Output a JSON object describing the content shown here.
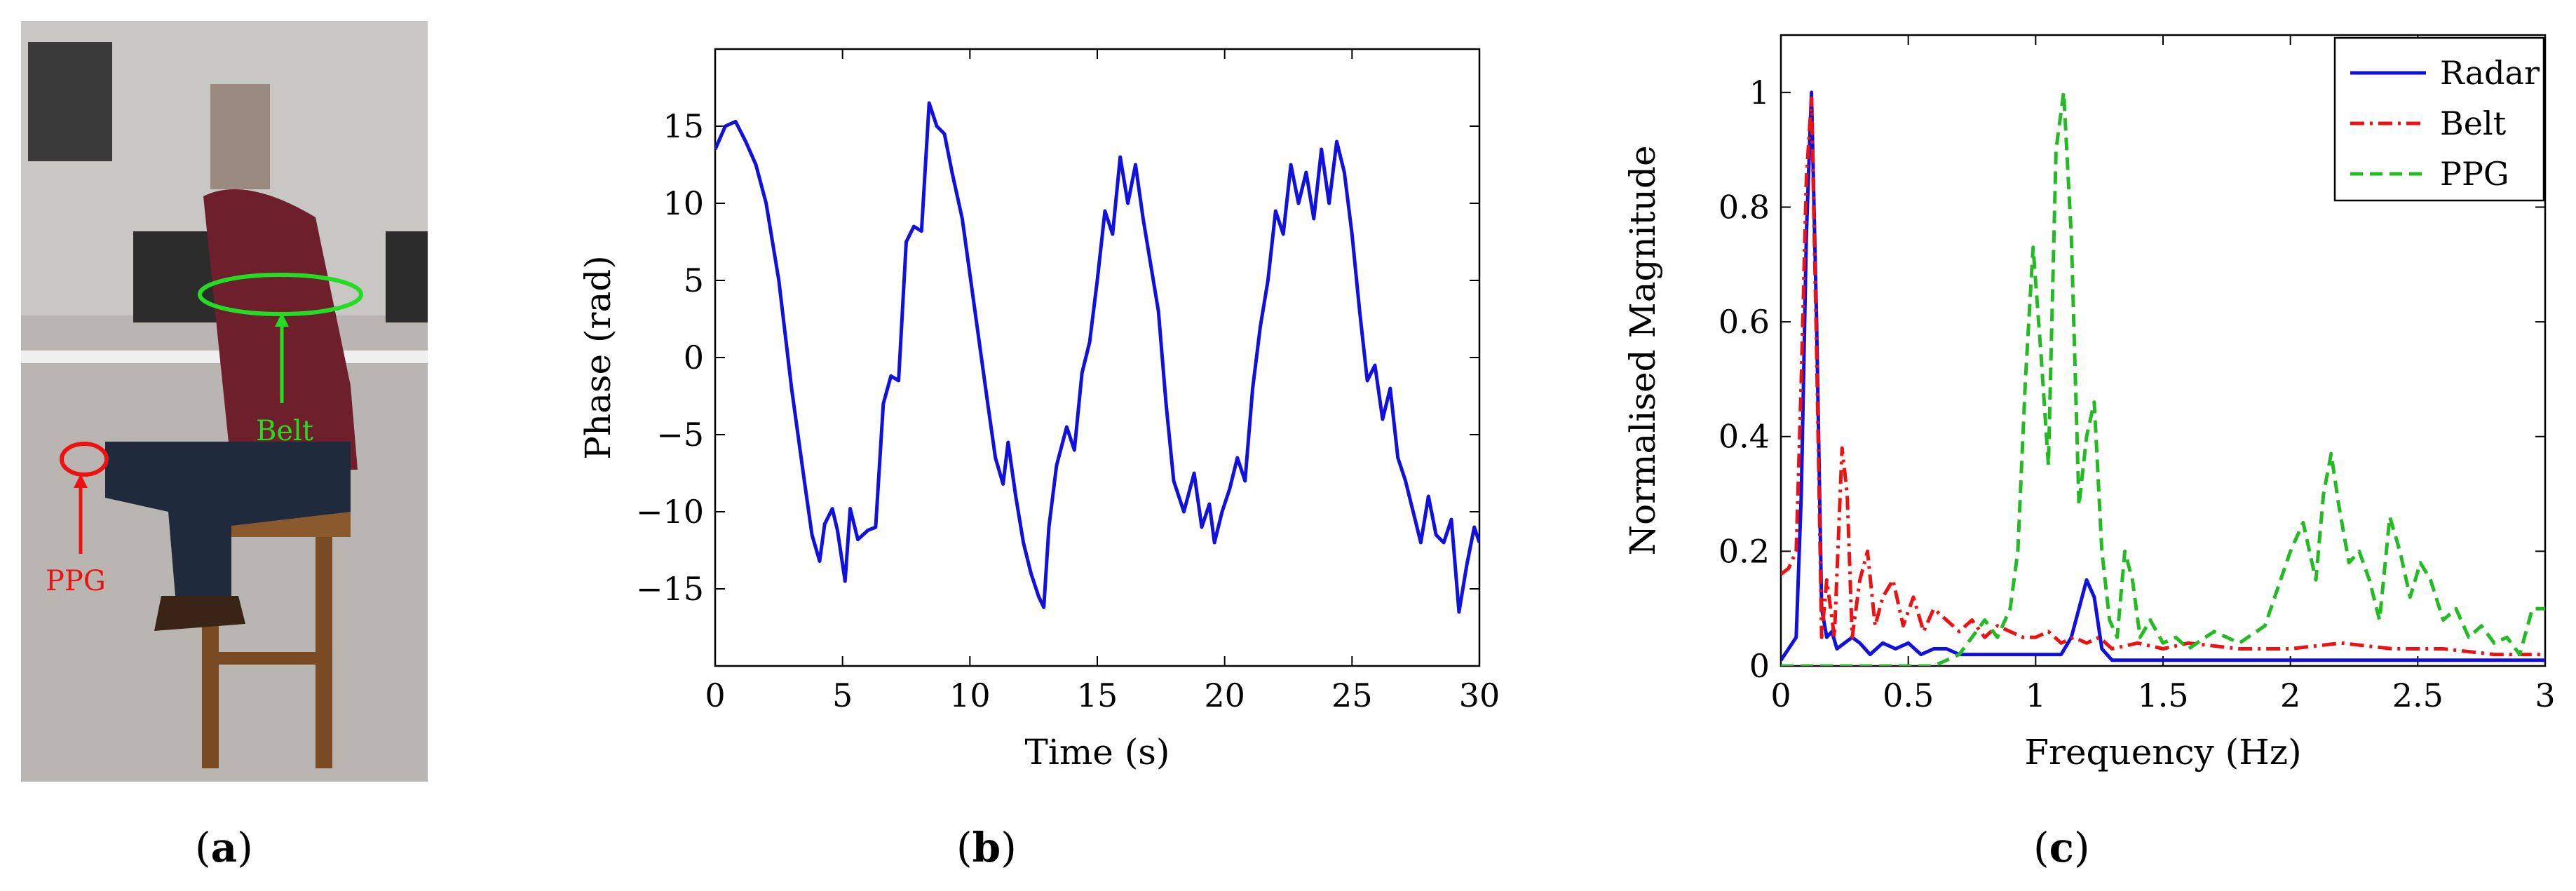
{
  "panels": [
    {
      "label_open": "(",
      "letter": "a",
      "label_close": ")"
    },
    {
      "label_open": "(",
      "letter": "b",
      "label_close": ")"
    },
    {
      "label_open": "(",
      "letter": "c",
      "label_close": ")"
    }
  ],
  "photo": {
    "annotations": {
      "belt": "Belt",
      "ppg": "PPG"
    },
    "colors": {
      "belt": "#22dd22",
      "ppg": "#ee1111"
    }
  },
  "chart_data": [
    {
      "type": "line",
      "xlabel": "Time (s)",
      "ylabel": "Phase (rad)",
      "xlim": [
        0,
        30
      ],
      "ylim": [
        -20,
        20
      ],
      "xticks": [
        0,
        5,
        10,
        15,
        20,
        25,
        30
      ],
      "yticks": [
        -15,
        -10,
        -5,
        0,
        5,
        10,
        15
      ],
      "grid": false,
      "series": [
        {
          "color": "#1010e0",
          "x": [
            0,
            0.4,
            0.8,
            1.2,
            1.6,
            2.0,
            2.5,
            3.0,
            3.5,
            3.8,
            4.1,
            4.3,
            4.6,
            4.8,
            5.1,
            5.3,
            5.6,
            6.0,
            6.3,
            6.6,
            6.9,
            7.2,
            7.5,
            7.8,
            8.1,
            8.4,
            8.7,
            9.0,
            9.3,
            9.7,
            10.2,
            10.7,
            11.0,
            11.3,
            11.5,
            11.8,
            12.1,
            12.4,
            12.7,
            12.9,
            13.1,
            13.4,
            13.8,
            14.1,
            14.4,
            14.7,
            15.0,
            15.3,
            15.6,
            15.9,
            16.2,
            16.5,
            16.8,
            17.1,
            17.4,
            17.7,
            18.0,
            18.4,
            18.8,
            19.1,
            19.4,
            19.6,
            19.9,
            20.2,
            20.5,
            20.8,
            21.1,
            21.4,
            21.7,
            22.0,
            22.3,
            22.6,
            22.9,
            23.2,
            23.5,
            23.8,
            24.1,
            24.4,
            24.7,
            25.0,
            25.3,
            25.6,
            25.9,
            26.2,
            26.5,
            26.8,
            27.1,
            27.4,
            27.7,
            28.0,
            28.3,
            28.6,
            28.9,
            29.2,
            29.5,
            29.8,
            30.0
          ],
          "y": [
            13.5,
            15.0,
            15.3,
            14.0,
            12.5,
            10.0,
            5.0,
            -2.0,
            -8.0,
            -11.5,
            -13.2,
            -10.8,
            -9.8,
            -11.2,
            -14.5,
            -9.8,
            -11.8,
            -11.2,
            -11.0,
            -3.0,
            -1.2,
            -1.5,
            7.5,
            8.5,
            8.2,
            16.5,
            15.0,
            14.5,
            12.0,
            9.0,
            3.0,
            -3.0,
            -6.5,
            -8.2,
            -5.5,
            -9.0,
            -12.0,
            -14.0,
            -15.5,
            -16.2,
            -11.0,
            -7.0,
            -4.5,
            -6.0,
            -1.0,
            1.0,
            5.0,
            9.5,
            8.0,
            13.0,
            10.0,
            12.5,
            9.0,
            6.0,
            3.0,
            -3.0,
            -8.0,
            -10.0,
            -7.5,
            -11.0,
            -9.5,
            -12.0,
            -10.0,
            -8.5,
            -6.5,
            -8.0,
            -2.0,
            2.0,
            5.0,
            9.5,
            8.0,
            12.5,
            10.0,
            12.0,
            9.0,
            13.5,
            10.0,
            14.0,
            12.0,
            8.0,
            3.0,
            -1.5,
            -0.5,
            -4.0,
            -2.0,
            -6.5,
            -8.0,
            -10.0,
            -12.0,
            -9.0,
            -11.5,
            -12.0,
            -10.5,
            -16.5,
            -13.5,
            -11.0,
            -12.0
          ]
        }
      ]
    },
    {
      "type": "line",
      "xlabel": "Frequency (Hz)",
      "ylabel": "Normalised Magnitude",
      "xlim": [
        0,
        3
      ],
      "ylim": [
        0,
        1.1
      ],
      "xticks": [
        0,
        0.5,
        1,
        1.5,
        2,
        2.5,
        3
      ],
      "yticks": [
        0,
        0.2,
        0.4,
        0.6,
        0.8,
        1
      ],
      "grid": false,
      "legend_position": "top-right",
      "series": [
        {
          "name": "Radar",
          "color": "#1010e0",
          "style": "solid",
          "x": [
            0,
            0.03,
            0.06,
            0.08,
            0.1,
            0.12,
            0.14,
            0.16,
            0.18,
            0.2,
            0.22,
            0.25,
            0.28,
            0.31,
            0.35,
            0.4,
            0.45,
            0.5,
            0.55,
            0.6,
            0.65,
            0.7,
            0.8,
            0.9,
            1.0,
            1.05,
            1.1,
            1.14,
            1.17,
            1.2,
            1.23,
            1.26,
            1.3,
            1.5,
            2.0,
            2.5,
            3.0
          ],
          "y": [
            0.01,
            0.03,
            0.05,
            0.3,
            0.75,
            1.0,
            0.6,
            0.1,
            0.05,
            0.06,
            0.03,
            0.04,
            0.05,
            0.04,
            0.02,
            0.04,
            0.03,
            0.04,
            0.02,
            0.03,
            0.03,
            0.02,
            0.02,
            0.02,
            0.02,
            0.02,
            0.02,
            0.05,
            0.1,
            0.15,
            0.12,
            0.03,
            0.01,
            0.01,
            0.01,
            0.01,
            0.01
          ]
        },
        {
          "name": "Belt",
          "color": "#ee1111",
          "style": "dashdot",
          "x": [
            0,
            0.03,
            0.06,
            0.08,
            0.1,
            0.12,
            0.14,
            0.16,
            0.18,
            0.21,
            0.24,
            0.26,
            0.28,
            0.31,
            0.34,
            0.37,
            0.4,
            0.44,
            0.48,
            0.52,
            0.56,
            0.6,
            0.65,
            0.7,
            0.75,
            0.8,
            0.85,
            0.9,
            0.95,
            1.0,
            1.05,
            1.1,
            1.15,
            1.2,
            1.25,
            1.3,
            1.4,
            1.5,
            1.6,
            1.8,
            2.0,
            2.2,
            2.4,
            2.6,
            2.8,
            3.0
          ],
          "y": [
            0.16,
            0.17,
            0.2,
            0.5,
            0.85,
            0.99,
            0.55,
            0.05,
            0.15,
            0.05,
            0.38,
            0.3,
            0.05,
            0.15,
            0.2,
            0.07,
            0.12,
            0.15,
            0.07,
            0.12,
            0.06,
            0.1,
            0.08,
            0.06,
            0.08,
            0.05,
            0.07,
            0.06,
            0.05,
            0.05,
            0.06,
            0.04,
            0.05,
            0.04,
            0.05,
            0.03,
            0.04,
            0.03,
            0.04,
            0.03,
            0.03,
            0.04,
            0.03,
            0.03,
            0.02,
            0.02
          ]
        },
        {
          "name": "PPG",
          "color": "#22bb22",
          "style": "dashed",
          "x": [
            0,
            0.1,
            0.3,
            0.5,
            0.6,
            0.7,
            0.8,
            0.85,
            0.9,
            0.93,
            0.96,
            0.99,
            1.02,
            1.05,
            1.08,
            1.11,
            1.14,
            1.17,
            1.2,
            1.23,
            1.26,
            1.29,
            1.32,
            1.35,
            1.38,
            1.41,
            1.45,
            1.5,
            1.55,
            1.6,
            1.7,
            1.8,
            1.9,
            2.0,
            2.05,
            2.1,
            2.13,
            2.16,
            2.19,
            2.23,
            2.27,
            2.31,
            2.35,
            2.39,
            2.43,
            2.47,
            2.51,
            2.55,
            2.6,
            2.65,
            2.7,
            2.75,
            2.8,
            2.85,
            2.9,
            2.95,
            3.0
          ],
          "y": [
            0.0,
            0.0,
            0.0,
            0.0,
            0.0,
            0.02,
            0.08,
            0.05,
            0.1,
            0.2,
            0.5,
            0.73,
            0.55,
            0.35,
            0.9,
            1.0,
            0.75,
            0.28,
            0.4,
            0.46,
            0.2,
            0.08,
            0.05,
            0.2,
            0.15,
            0.05,
            0.08,
            0.04,
            0.05,
            0.03,
            0.06,
            0.04,
            0.07,
            0.2,
            0.25,
            0.15,
            0.3,
            0.37,
            0.28,
            0.18,
            0.2,
            0.15,
            0.08,
            0.26,
            0.2,
            0.12,
            0.18,
            0.15,
            0.08,
            0.1,
            0.05,
            0.07,
            0.04,
            0.05,
            0.02,
            0.1,
            0.1
          ]
        }
      ]
    }
  ]
}
